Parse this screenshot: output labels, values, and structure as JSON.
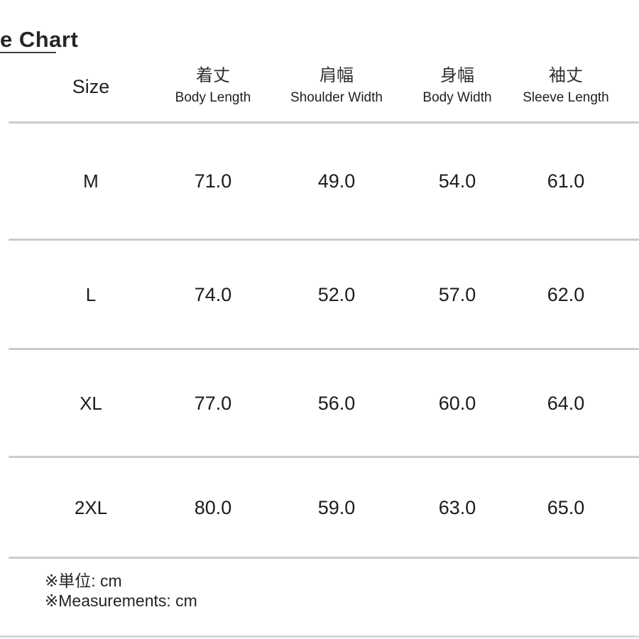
{
  "chart_data": {
    "type": "table",
    "title": "e Chart",
    "columns": [
      {
        "jp": "",
        "en": "Size"
      },
      {
        "jp": "着丈",
        "en": "Body Length"
      },
      {
        "jp": "肩幅",
        "en": "Shoulder Width"
      },
      {
        "jp": "身幅",
        "en": "Body Width"
      },
      {
        "jp": "袖丈",
        "en": "Sleeve Length"
      }
    ],
    "rows": [
      {
        "size": "M",
        "values": [
          "71.0",
          "49.0",
          "54.0",
          "61.0"
        ]
      },
      {
        "size": "L",
        "values": [
          "74.0",
          "52.0",
          "57.0",
          "62.0"
        ]
      },
      {
        "size": "XL",
        "values": [
          "77.0",
          "56.0",
          "60.0",
          "64.0"
        ]
      },
      {
        "size": "2XL",
        "values": [
          "80.0",
          "59.0",
          "63.0",
          "65.0"
        ]
      }
    ],
    "unit": "cm",
    "notes": [
      "※単位: cm",
      "※Measurements: cm"
    ]
  },
  "colors": {
    "text": "#1f1f1f",
    "divider": "#cbcbcb",
    "underline": "#3d3d3d",
    "bottom_line": "#d8d8d8"
  }
}
